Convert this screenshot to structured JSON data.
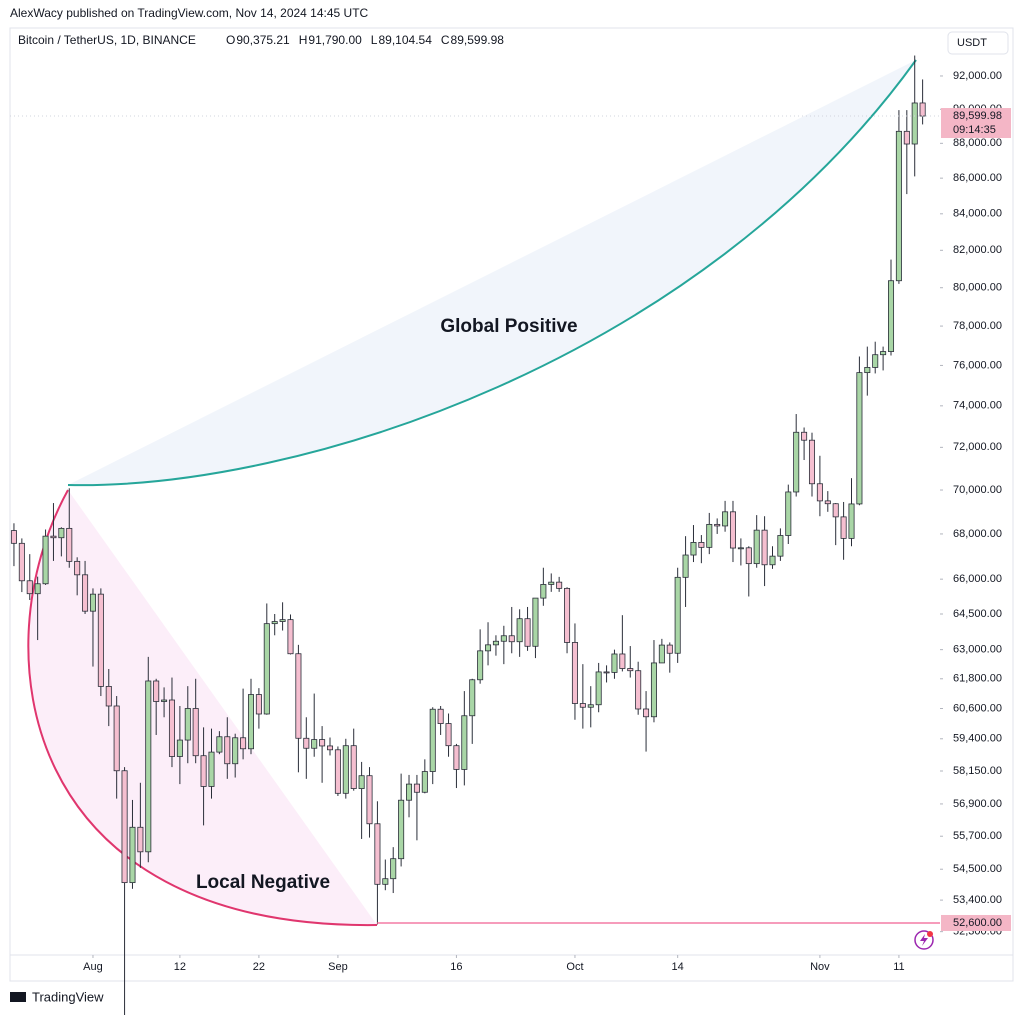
{
  "header": {
    "publisher": "AlexWacy published on TradingView.com, Nov 14, 2024 14:45 UTC"
  },
  "footer": {
    "brand": "TradingView"
  },
  "chart_data": {
    "type": "candlestick",
    "symbol": "Bitcoin / TetherUS, 1D, BINANCE",
    "ohlc_legend": [
      {
        "key": "O",
        "value": 90375.21,
        "label": "90,375.21"
      },
      {
        "key": "H",
        "value": 91790.0,
        "label": "91,790.00"
      },
      {
        "key": "L",
        "value": 89104.54,
        "label": "89,104.54"
      },
      {
        "key": "C",
        "value": 89599.98,
        "label": "89,599.98"
      }
    ],
    "currency": "USDT",
    "log_scale": true,
    "up_color": "#a9d6a6",
    "down_color": "#f5bfd0",
    "xlim": [
      -0.5,
      117.2
    ],
    "ylim": [
      51500,
      94960
    ],
    "xticks": [
      {
        "value": 10,
        "label": "Aug"
      },
      {
        "value": 21,
        "label": "12"
      },
      {
        "value": 31,
        "label": "22"
      },
      {
        "value": 41,
        "label": "Sep"
      },
      {
        "value": 56,
        "label": "16"
      },
      {
        "value": 71,
        "label": "Oct"
      },
      {
        "value": 84,
        "label": "14"
      },
      {
        "value": 102,
        "label": "Nov"
      },
      {
        "value": 112,
        "label": "11"
      }
    ],
    "yticks": [
      {
        "value": 92000,
        "label": "92,000.00"
      },
      {
        "value": 90000,
        "label": "90,000.00"
      },
      {
        "value": 88000,
        "label": "88,000.00"
      },
      {
        "value": 86000,
        "label": "86,000.00"
      },
      {
        "value": 84000,
        "label": "84,000.00"
      },
      {
        "value": 82000,
        "label": "82,000.00"
      },
      {
        "value": 80000,
        "label": "80,000.00"
      },
      {
        "value": 78000,
        "label": "78,000.00"
      },
      {
        "value": 76000,
        "label": "76,000.00"
      },
      {
        "value": 74000,
        "label": "74,000.00"
      },
      {
        "value": 72000,
        "label": "72,000.00"
      },
      {
        "value": 70000,
        "label": "70,000.00"
      },
      {
        "value": 68000,
        "label": "68,000.00"
      },
      {
        "value": 66000,
        "label": "66,000.00"
      },
      {
        "value": 64500,
        "label": "64,500.00"
      },
      {
        "value": 63000,
        "label": "63,000.00"
      },
      {
        "value": 61800,
        "label": "61,800.00"
      },
      {
        "value": 60600,
        "label": "60,600.00"
      },
      {
        "value": 59400,
        "label": "59,400.00"
      },
      {
        "value": 58150,
        "label": "58,150.00"
      },
      {
        "value": 56900,
        "label": "56,900.00"
      },
      {
        "value": 55700,
        "label": "55,700.00"
      },
      {
        "value": 54500,
        "label": "54,500.00"
      },
      {
        "value": 53400,
        "label": "53,400.00"
      },
      {
        "value": 52300,
        "label": "52,300.00"
      }
    ],
    "last_price": {
      "value": 89599.98,
      "label": "89,599.98",
      "countdown": "09:14:35"
    },
    "level": {
      "value": 52600,
      "label": "52,600.00"
    },
    "annotations": [
      "Global Positive",
      "Local Negative"
    ],
    "candles": [
      [
        68150,
        68480,
        66570,
        67580
      ],
      [
        67580,
        67800,
        65440,
        65930
      ],
      [
        65930,
        67100,
        65100,
        65370
      ],
      [
        65370,
        66110,
        63400,
        65800
      ],
      [
        65800,
        68200,
        65750,
        67900
      ],
      [
        67900,
        69400,
        66800,
        67830
      ],
      [
        67830,
        68300,
        67000,
        68250
      ],
      [
        68250,
        70080,
        66500,
        66780
      ],
      [
        66780,
        66960,
        65300,
        66190
      ],
      [
        66190,
        66800,
        64500,
        64620
      ],
      [
        64620,
        65600,
        62300,
        65350
      ],
      [
        65350,
        65600,
        61100,
        61490
      ],
      [
        61490,
        62200,
        59900,
        60700
      ],
      [
        60700,
        61100,
        57100,
        58160
      ],
      [
        58160,
        58300,
        49000,
        54020
      ],
      [
        54020,
        57050,
        53800,
        56030
      ],
      [
        56030,
        57700,
        54550,
        55130
      ],
      [
        55130,
        62700,
        54750,
        61710
      ],
      [
        61710,
        61800,
        59550,
        60880
      ],
      [
        60880,
        61450,
        60250,
        60940
      ],
      [
        60940,
        61850,
        58300,
        58710
      ],
      [
        58710,
        60700,
        57650,
        59350
      ],
      [
        59350,
        61500,
        58450,
        60600
      ],
      [
        60600,
        61800,
        58450,
        58740
      ],
      [
        58740,
        59850,
        56100,
        57560
      ],
      [
        57560,
        59800,
        57100,
        58880
      ],
      [
        58880,
        59700,
        58800,
        59480
      ],
      [
        59480,
        60250,
        57850,
        58430
      ],
      [
        58430,
        59600,
        57900,
        59440
      ],
      [
        59440,
        61400,
        58600,
        59010
      ],
      [
        59010,
        61800,
        58800,
        61160
      ],
      [
        61160,
        61420,
        59800,
        60380
      ],
      [
        60380,
        64950,
        60350,
        64090
      ],
      [
        64090,
        64500,
        63600,
        64180
      ],
      [
        64180,
        65000,
        63800,
        64260
      ],
      [
        64260,
        64480,
        62800,
        62830
      ],
      [
        62830,
        63200,
        58100,
        59420
      ],
      [
        59420,
        60250,
        57850,
        59030
      ],
      [
        59030,
        61200,
        58700,
        59370
      ],
      [
        59370,
        59900,
        57700,
        59120
      ],
      [
        59120,
        59450,
        58750,
        58970
      ],
      [
        58970,
        59100,
        57200,
        57300
      ],
      [
        57300,
        59400,
        57100,
        59130
      ],
      [
        59130,
        59800,
        57400,
        57480
      ],
      [
        57480,
        58500,
        55600,
        57970
      ],
      [
        57970,
        58300,
        55650,
        56160
      ],
      [
        56160,
        57000,
        52550,
        53960
      ],
      [
        53960,
        54850,
        53750,
        54160
      ],
      [
        54160,
        55300,
        53650,
        54880
      ],
      [
        54880,
        58050,
        54600,
        57040
      ],
      [
        57040,
        58000,
        56400,
        57650
      ],
      [
        57650,
        58000,
        55550,
        57340
      ],
      [
        57340,
        58600,
        57300,
        58130
      ],
      [
        58130,
        60650,
        57650,
        60570
      ],
      [
        60570,
        60700,
        59550,
        60000
      ],
      [
        60000,
        60400,
        58700,
        59130
      ],
      [
        59130,
        59200,
        57500,
        58210
      ],
      [
        58210,
        61300,
        57600,
        60310
      ],
      [
        60310,
        61800,
        59200,
        61760
      ],
      [
        61760,
        63850,
        61600,
        62950
      ],
      [
        62950,
        64150,
        62350,
        63200
      ],
      [
        63200,
        63600,
        62750,
        63350
      ],
      [
        63350,
        64000,
        62400,
        63580
      ],
      [
        63580,
        64800,
        62850,
        63330
      ],
      [
        63330,
        64700,
        62700,
        64300
      ],
      [
        64300,
        64800,
        62950,
        63140
      ],
      [
        63140,
        65000,
        62650,
        65180
      ],
      [
        65180,
        66500,
        64850,
        65770
      ],
      [
        65770,
        66250,
        65450,
        65870
      ],
      [
        65870,
        66100,
        65450,
        65600
      ],
      [
        65600,
        65650,
        62850,
        63300
      ],
      [
        63300,
        64100,
        60150,
        60800
      ],
      [
        60800,
        62400,
        59800,
        60650
      ],
      [
        60650,
        61500,
        59850,
        60750
      ],
      [
        60750,
        62450,
        60450,
        62080
      ],
      [
        62080,
        62350,
        61650,
        62060
      ],
      [
        62060,
        63000,
        61800,
        62820
      ],
      [
        62820,
        64450,
        62100,
        62220
      ],
      [
        62220,
        63150,
        61850,
        62130
      ],
      [
        62130,
        62500,
        60350,
        60580
      ],
      [
        60580,
        61300,
        58900,
        60270
      ],
      [
        60270,
        63400,
        60050,
        62450
      ],
      [
        62450,
        63450,
        62450,
        63190
      ],
      [
        63190,
        63300,
        62050,
        62850
      ],
      [
        62850,
        66500,
        62450,
        66080
      ],
      [
        66080,
        67900,
        64800,
        67060
      ],
      [
        67060,
        68400,
        66750,
        67620
      ],
      [
        67620,
        67950,
        66700,
        67400
      ],
      [
        67400,
        68950,
        67100,
        68430
      ],
      [
        68430,
        68700,
        68000,
        68360
      ],
      [
        68360,
        69500,
        68100,
        69000
      ],
      [
        69000,
        69500,
        66750,
        67370
      ],
      [
        67370,
        67800,
        66600,
        67380
      ],
      [
        67380,
        67450,
        65250,
        66680
      ],
      [
        66680,
        68850,
        66500,
        68170
      ],
      [
        68170,
        68800,
        65700,
        66630
      ],
      [
        66630,
        67450,
        66450,
        67010
      ],
      [
        67010,
        68250,
        66800,
        67930
      ],
      [
        67930,
        70250,
        67550,
        69910
      ],
      [
        69910,
        73600,
        69700,
        72720
      ],
      [
        72720,
        72950,
        71400,
        72340
      ],
      [
        72340,
        72700,
        69700,
        70290
      ],
      [
        70290,
        71600,
        68800,
        69500
      ],
      [
        69500,
        69950,
        69000,
        69370
      ],
      [
        69370,
        69400,
        67500,
        68770
      ],
      [
        68770,
        69450,
        66850,
        67800
      ],
      [
        67800,
        70550,
        67450,
        69360
      ],
      [
        69360,
        76450,
        69300,
        75640
      ],
      [
        75640,
        76950,
        74500,
        75900
      ],
      [
        75900,
        77200,
        75600,
        76540
      ],
      [
        76540,
        76950,
        75750,
        76700
      ],
      [
        76700,
        81500,
        76500,
        80370
      ],
      [
        80370,
        89950,
        80200,
        88700
      ],
      [
        88700,
        89950,
        85100,
        87960
      ],
      [
        87960,
        93250,
        86100,
        90375
      ],
      [
        90375.21,
        91790,
        89104.54,
        89599.98
      ]
    ]
  }
}
